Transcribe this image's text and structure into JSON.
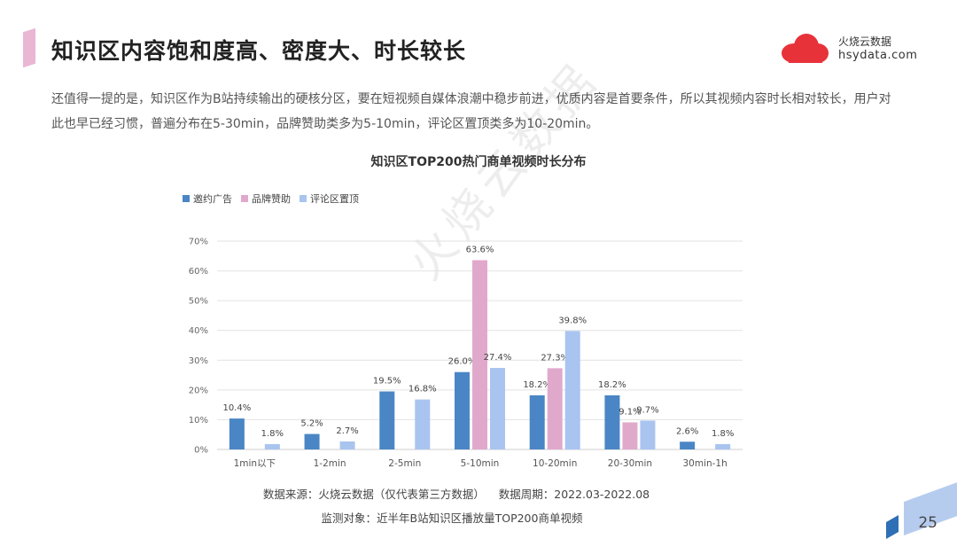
{
  "header": {
    "title": "知识区内容饱和度高、密度大、时长较长",
    "logo_name": "火烧云数据",
    "logo_domain": "hsydata.com"
  },
  "description": "还值得一提的是，知识区作为B站持续输出的硬核分区，要在短视频自媒体浪潮中稳步前进，优质内容是首要条件，所以其视频内容时长相对较长，用户对此也早已经习惯，普遍分布在5-30min，品牌赞助类多为5-10min，评论区置顶类多为10-20min。",
  "watermark": "火烧云数据",
  "footer": {
    "line1": "数据来源：火烧云数据（仅代表第三方数据）    数据周期：2022.03-2022.08",
    "line2": "监测对象：近半年B站知识区播放量TOP200商单视频"
  },
  "page_number": "25",
  "colors": {
    "series1": "#4a86c5",
    "series2": "#e0a9cc",
    "series3": "#a9c4ef",
    "grid": "#e2e2e2",
    "accent_title_bar": "#e9b6d3",
    "logo": "#e8323a"
  },
  "chart_data": {
    "type": "bar",
    "title": "知识区TOP200热门商单视频时长分布",
    "categories": [
      "1min以下",
      "1-2min",
      "2-5min",
      "5-10min",
      "10-20min",
      "20-30min",
      "30min-1h"
    ],
    "series": [
      {
        "name": "邀约广告",
        "values": [
          10.4,
          5.2,
          19.5,
          26.0,
          18.2,
          18.2,
          2.6
        ]
      },
      {
        "name": "品牌赞助",
        "values": [
          null,
          null,
          null,
          63.6,
          27.3,
          9.1,
          null
        ]
      },
      {
        "name": "评论区置顶",
        "values": [
          1.8,
          2.7,
          16.8,
          27.4,
          39.8,
          9.7,
          1.8
        ]
      }
    ],
    "y_ticks": [
      "0%",
      "10%",
      "20%",
      "30%",
      "40%",
      "50%",
      "60%",
      "70%"
    ],
    "ylim": [
      0,
      70
    ],
    "grid": true,
    "legend_position": "top-left"
  }
}
